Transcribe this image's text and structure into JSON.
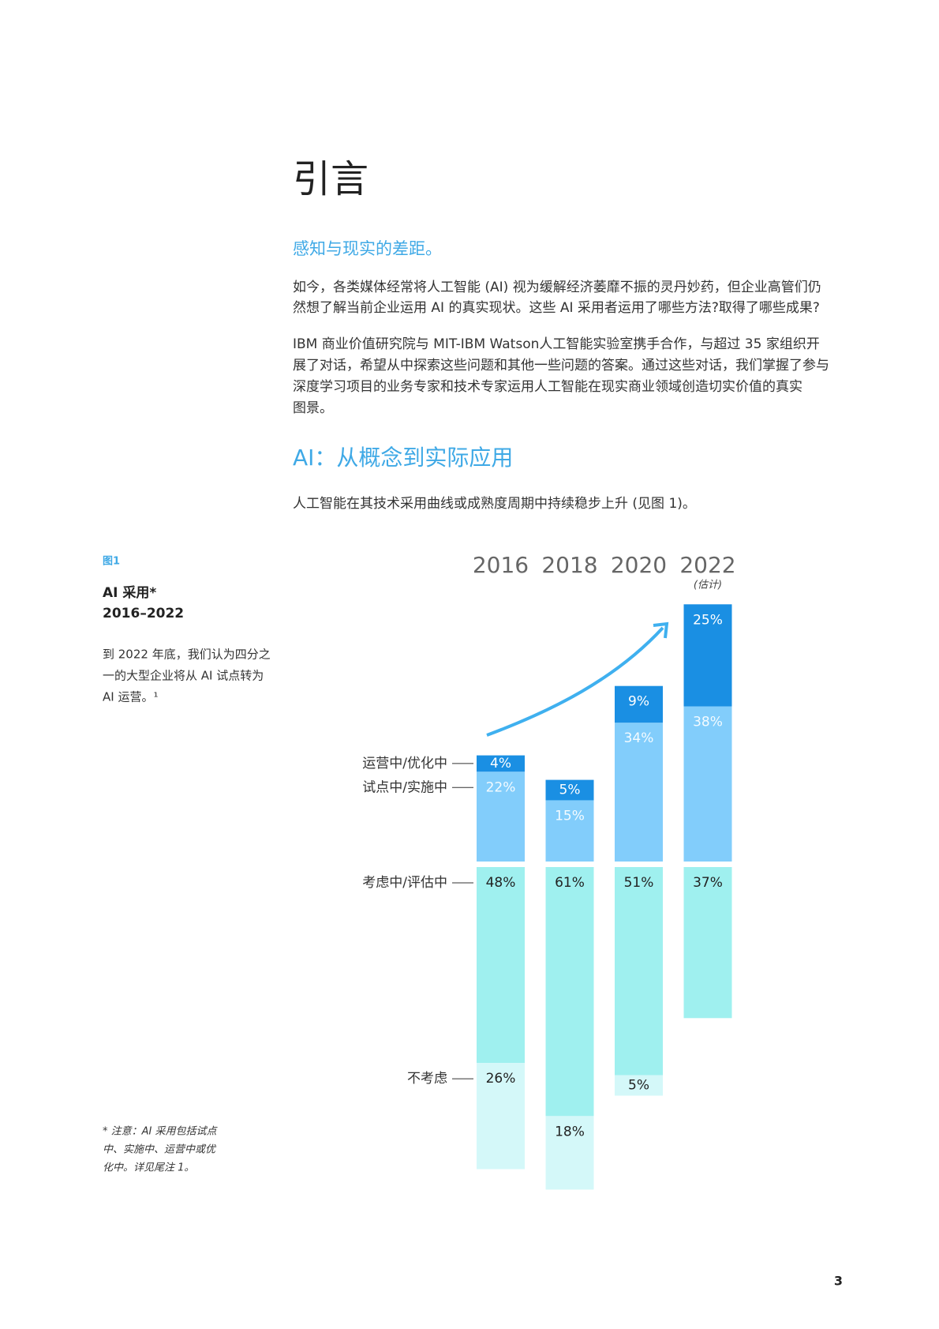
{
  "title": "引言",
  "subtitle": "感知与现实的差距。",
  "paragraphs": [
    [
      "如今，各类媒体经常将人工智能 (AI) 视为缓解经济萎靡不振的灵丹妙药，但企业高管们仍",
      "然想了解当前企业运用 AI 的真实现状。这些 AI 采用者运用了哪些方法?取得了哪些成果?"
    ],
    [
      "IBM 商业价值研究院与 MIT-IBM Watson人工智能实验室携手合作，与超过 35 家组织开",
      "展了对话，希望从中探索这些问题和其他一些问题的答案。通过这些对话，我们掌握了参与",
      "深度学习项目的业务专家和技术专家运用人工智能在现实商业领域创造切实价值的真实",
      "图景。"
    ]
  ],
  "heading": "AI：从概念到实际应用",
  "intro": "人工智能在其技术采用曲线或成熟度周期中持续稳步上升 (见图 1)。",
  "figure": {
    "label": "图1",
    "title_lines": [
      "AI 采用*",
      "2016–2022"
    ],
    "description": [
      "到 2022 年底，我们认为四分之",
      "一的大型企业将从 AI 试点转为",
      "AI 运营。¹"
    ],
    "note": [
      "* 注意：AI 采用包括试点",
      "中、实施中、运营中或优",
      "化中。详见尾注 1。"
    ]
  },
  "chart_data": {
    "type": "bar",
    "categories": [
      "2016",
      "2018",
      "2020",
      "2022"
    ],
    "annotation": "(估计)",
    "series": [
      {
        "name": "运营中/优化中",
        "color": "#1a8fe3",
        "values": [
          4,
          5,
          9,
          25
        ],
        "value_labels": [
          "4%",
          "5%",
          "9%",
          "25%"
        ]
      },
      {
        "name": "试点中/实施中",
        "color": "#82cdfb",
        "values": [
          22,
          15,
          34,
          38
        ],
        "value_labels": [
          "22%",
          "15%",
          "34%",
          "38%"
        ]
      },
      {
        "name": "考虑中/评估中",
        "color": "#9ff0ef",
        "values": [
          48,
          61,
          51,
          37
        ],
        "value_labels": [
          "48%",
          "61%",
          "51%",
          "37%"
        ]
      },
      {
        "name": "不考虑",
        "color": "#d4f8f9",
        "values": [
          26,
          18,
          5,
          null
        ],
        "value_labels": [
          "26%",
          "18%",
          "5%",
          null
        ]
      }
    ]
  },
  "page_number": 3
}
